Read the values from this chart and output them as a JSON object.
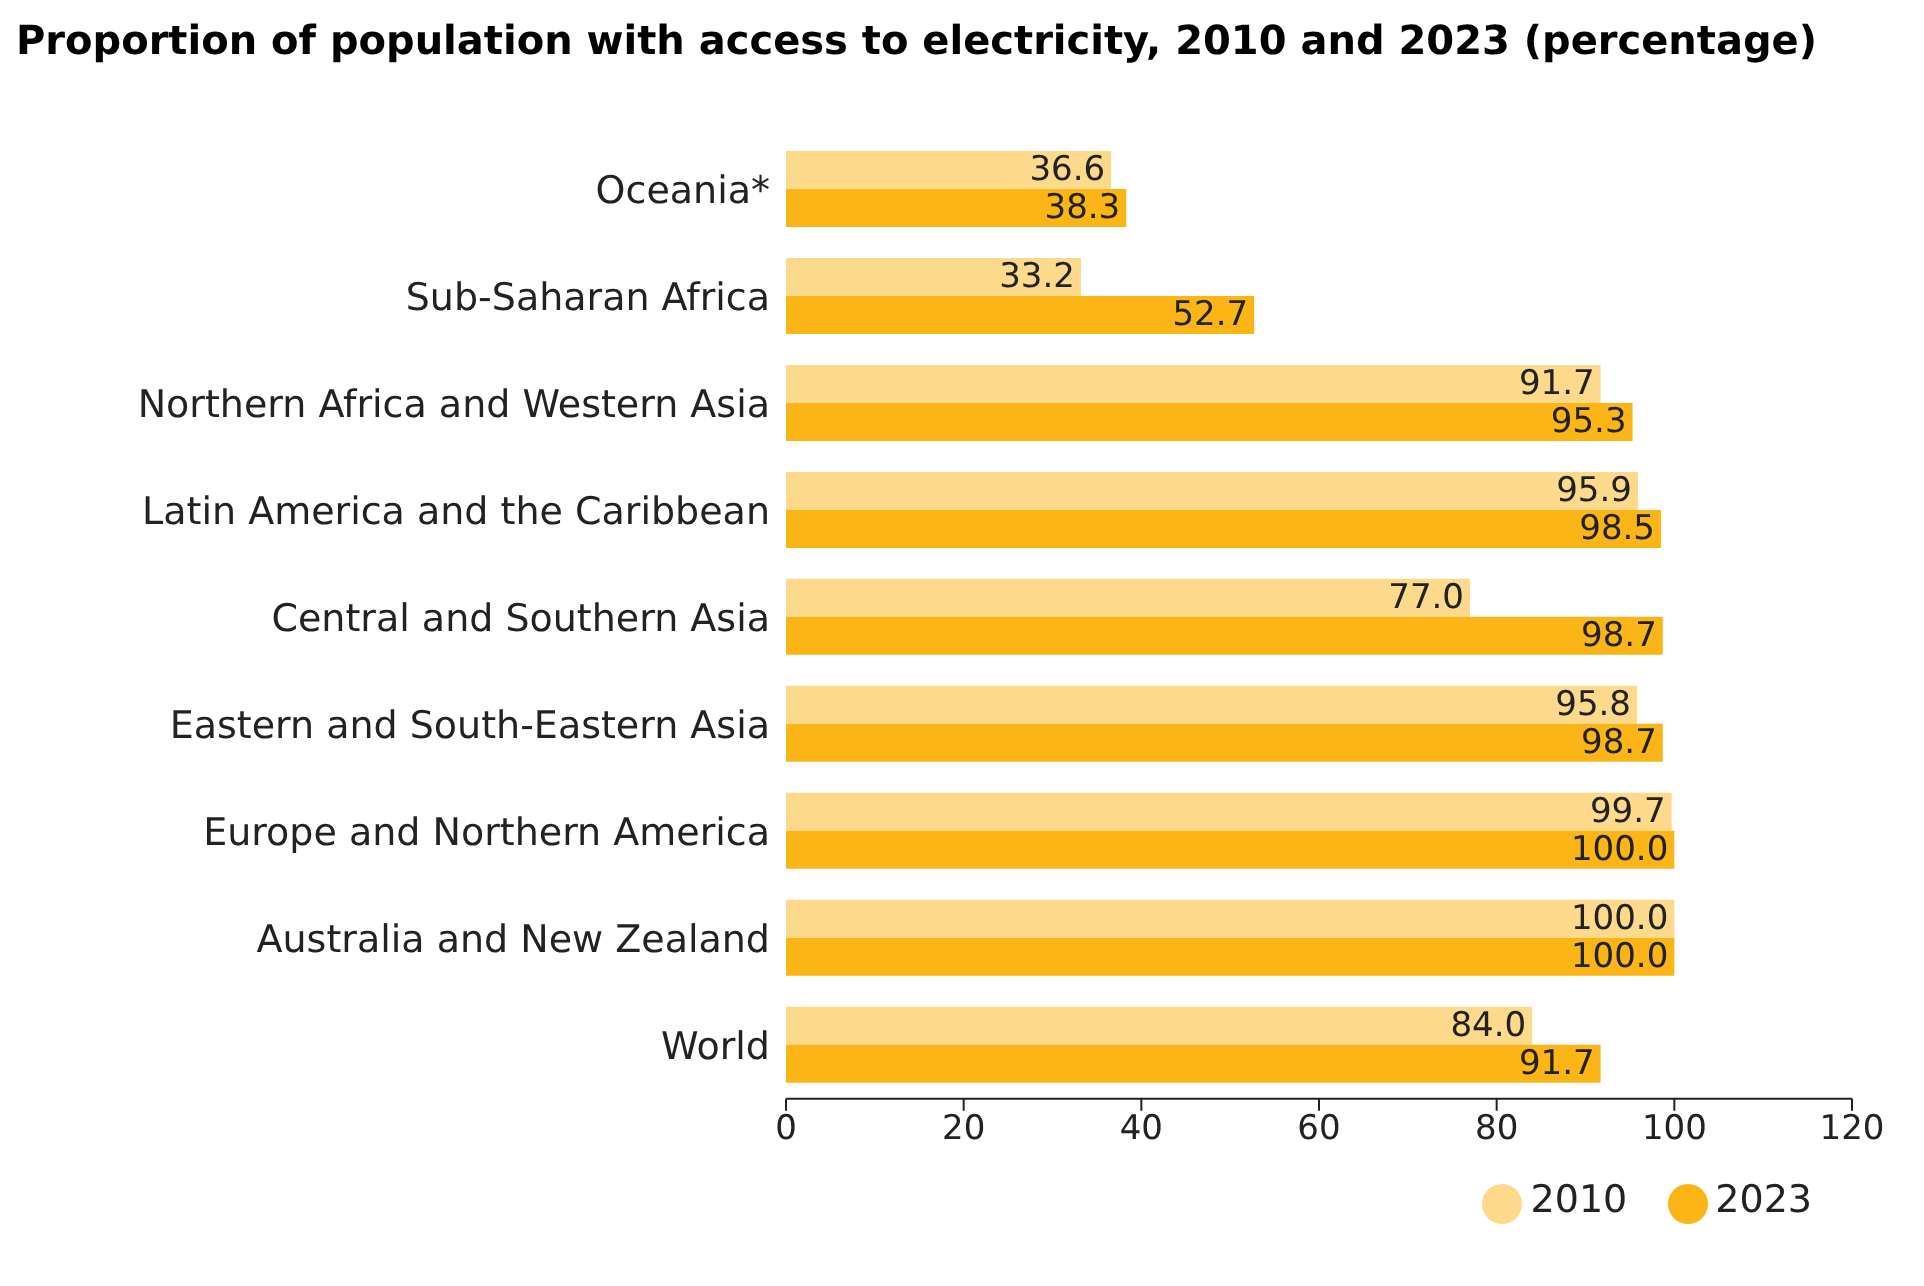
{
  "chart_data": {
    "type": "bar",
    "orientation": "horizontal",
    "title": "Proportion of population with access to electricity, 2010 and 2023 (percentage)",
    "categories": [
      "Oceania*",
      "Sub-Saharan Africa",
      "Northern Africa and Western Asia",
      "Latin America and the Caribbean",
      "Central and Southern Asia",
      "Eastern and South-Eastern Asia",
      "Europe and Northern America",
      "Australia and New Zealand",
      "World"
    ],
    "series": [
      {
        "name": "2010",
        "color": "#fdd98b",
        "values": [
          36.6,
          33.2,
          91.7,
          95.9,
          77.0,
          95.8,
          99.7,
          100.0,
          84.0
        ],
        "value_labels": [
          "36.6",
          "33.2",
          "91.7",
          "95.9",
          "77.0",
          "95.8",
          "99.7",
          "100.0",
          "84.0"
        ]
      },
      {
        "name": "2023",
        "color": "#fbb516",
        "values": [
          38.3,
          52.7,
          95.3,
          98.5,
          98.7,
          98.7,
          100.0,
          100.0,
          91.7
        ],
        "value_labels": [
          "38.3",
          "52.7",
          "95.3",
          "98.5",
          "98.7",
          "98.7",
          "100.0",
          "100.0",
          "91.7"
        ]
      }
    ],
    "xlim": [
      0,
      120
    ],
    "xticks": [
      0,
      20,
      40,
      60,
      80,
      100,
      120
    ],
    "grid": false,
    "legend": "bottom right"
  }
}
